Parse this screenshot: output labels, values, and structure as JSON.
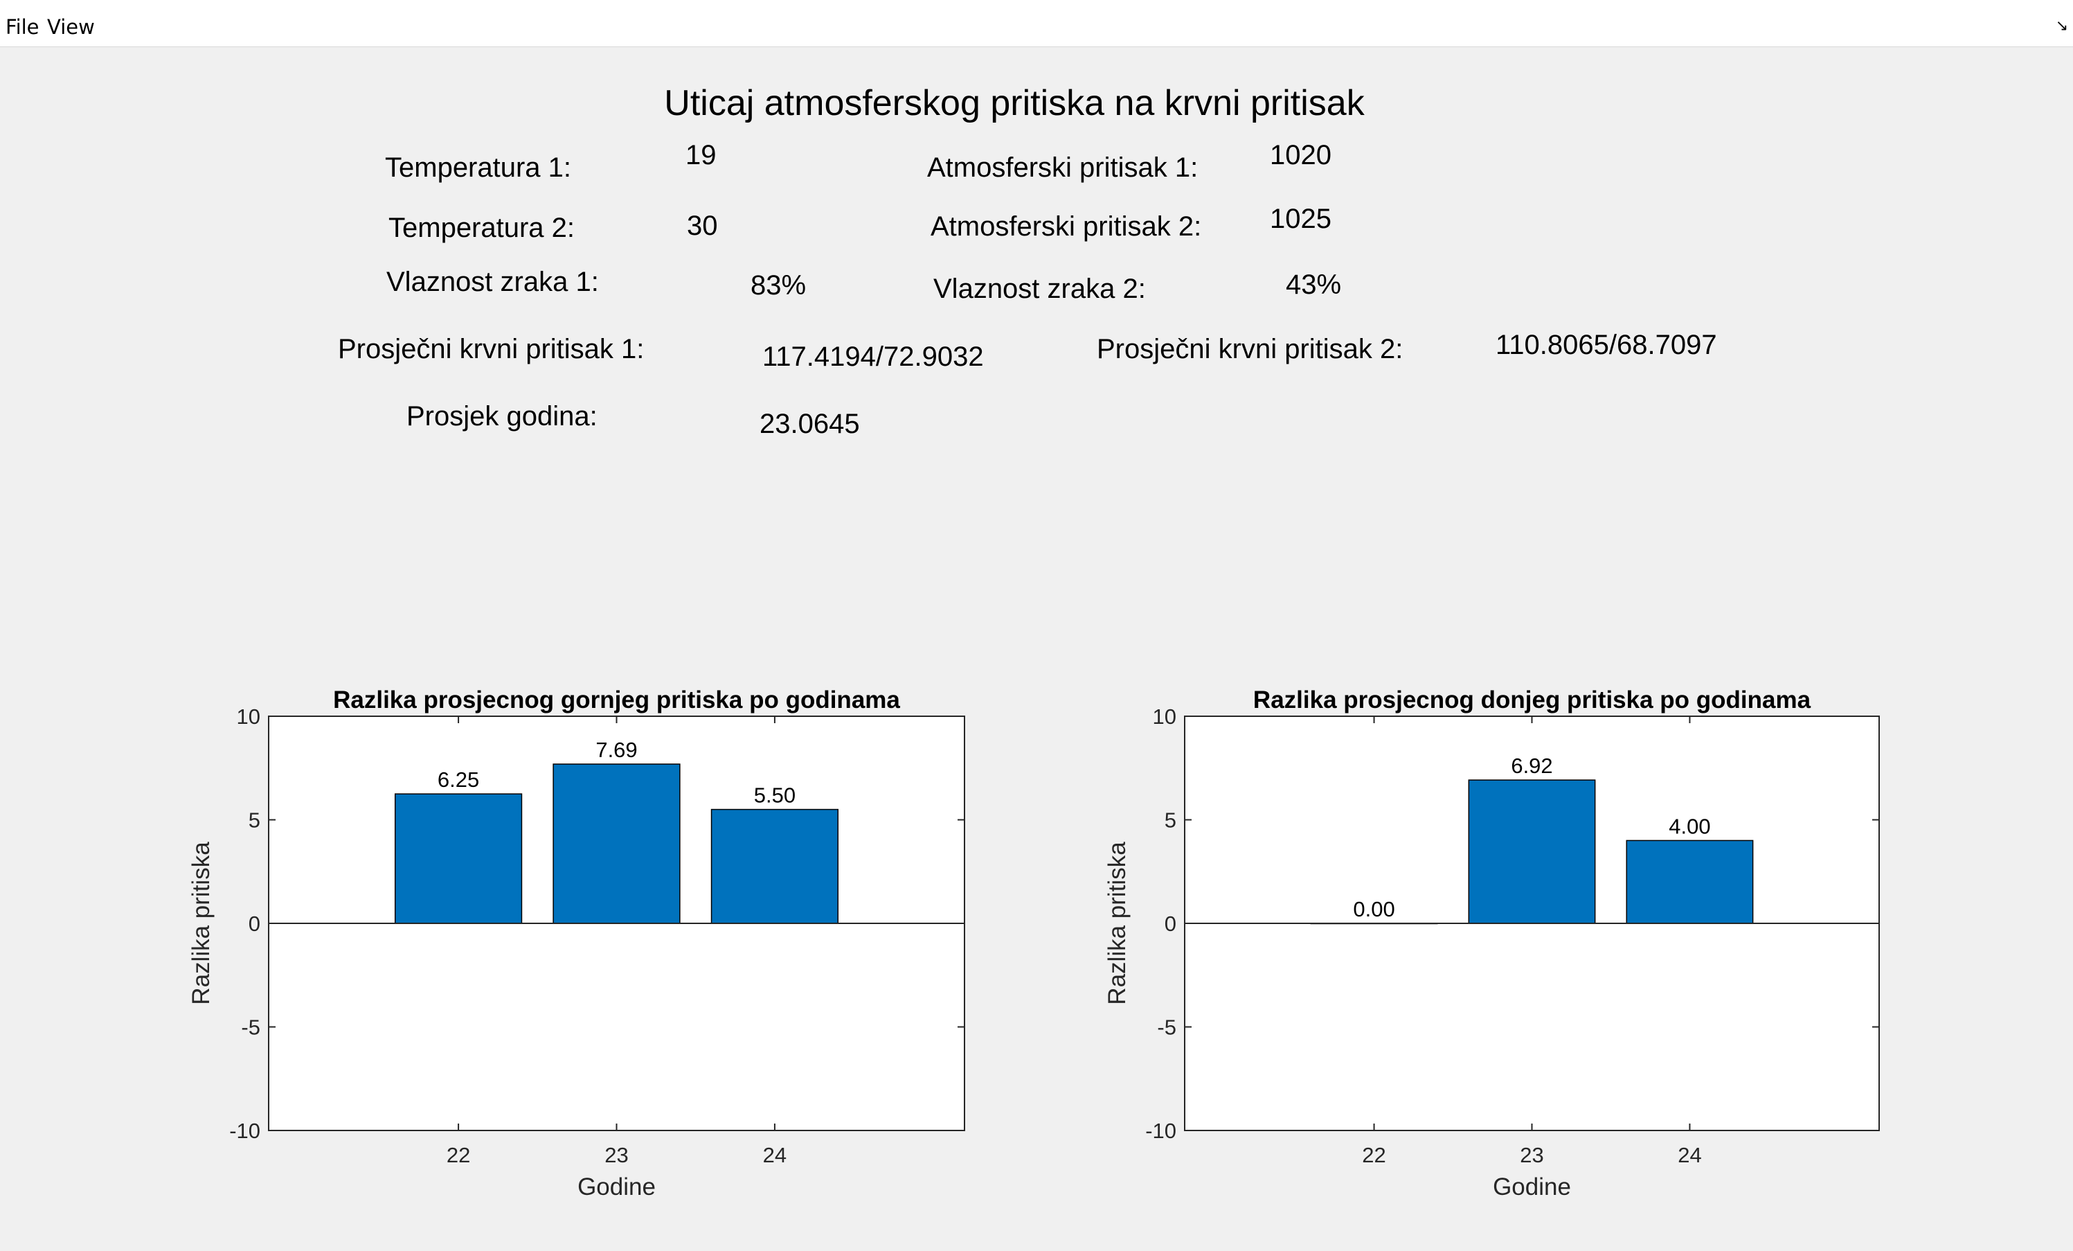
{
  "menu": {
    "items": [
      "File",
      "View"
    ]
  },
  "header": {
    "title": "Uticaj atmosferskog pritiska na krvni pritisak"
  },
  "fields": {
    "temp1": {
      "label": "Temperatura 1:",
      "value": "19"
    },
    "temp2": {
      "label": "Temperatura 2:",
      "value": "30"
    },
    "pressure1": {
      "label": "Atmosferski pritisak 1:",
      "value": "1020"
    },
    "pressure2": {
      "label": "Atmosferski pritisak 2:",
      "value": "1025"
    },
    "humidity1": {
      "label": "Vlaznost zraka 1:",
      "value": "83%"
    },
    "humidity2": {
      "label": "Vlaznost zraka 2:",
      "value": "43%"
    },
    "bp1": {
      "label": "Prosječni krvni pritisak 1:",
      "value": "117.4194/72.9032"
    },
    "bp2": {
      "label": "Prosječni krvni pritisak 2:",
      "value": "110.8065/68.7097"
    },
    "age": {
      "label": "Prosjek godina:",
      "value": "23.0645"
    }
  },
  "colors": {
    "bar": "#0072bd",
    "axis": "#262626",
    "plot_bg": "#ffffff"
  },
  "chart_data": [
    {
      "type": "bar",
      "title": "Razlika prosjecnog gornjeg pritiska po godinama",
      "xlabel": "Godine",
      "ylabel": "Razlika pritiska",
      "categories": [
        "22",
        "23",
        "24"
      ],
      "values": [
        6.25,
        7.69,
        5.5
      ],
      "data_labels": [
        "6.25",
        "7.69",
        "5.50"
      ],
      "ylim": [
        -10,
        10
      ],
      "yticks": [
        -10,
        -5,
        0,
        5,
        10
      ],
      "xlim": [
        20.8,
        25.2
      ],
      "grid": false
    },
    {
      "type": "bar",
      "title": "Razlika prosjecnog donjeg pritiska po godinama",
      "xlabel": "Godine",
      "ylabel": "Razlika pritiska",
      "categories": [
        "22",
        "23",
        "24"
      ],
      "values": [
        0,
        6.92,
        4.0
      ],
      "data_labels": [
        "0.00",
        "6.92",
        "4.00"
      ],
      "ylim": [
        -10,
        10
      ],
      "yticks": [
        -10,
        -5,
        0,
        5,
        10
      ],
      "xlim": [
        20.8,
        25.2
      ],
      "grid": false
    }
  ]
}
